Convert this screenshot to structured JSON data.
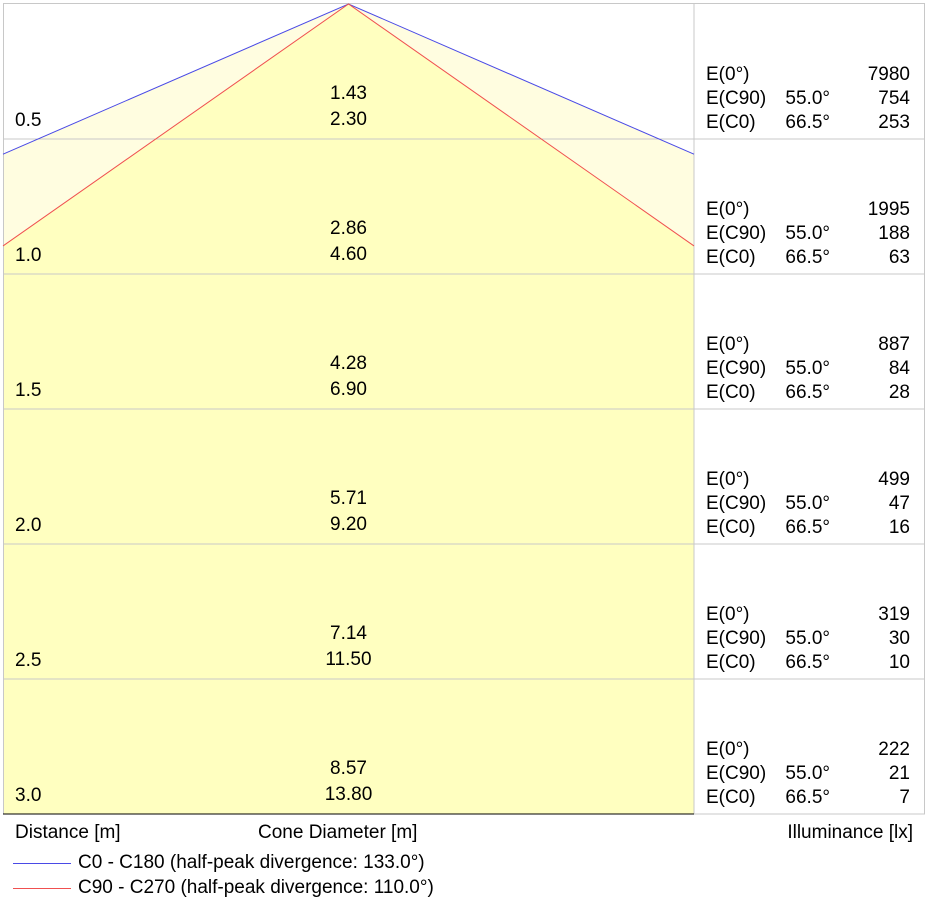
{
  "chart_data": {
    "type": "cone-diagram",
    "rows": [
      {
        "distance": "0.5",
        "d_c0": "2.30",
        "d_c90": "1.43",
        "e0": "7980",
        "ec90": "754",
        "ec0": "253"
      },
      {
        "distance": "1.0",
        "d_c0": "4.60",
        "d_c90": "2.86",
        "e0": "1995",
        "ec90": "188",
        "ec0": "63"
      },
      {
        "distance": "1.5",
        "d_c0": "6.90",
        "d_c90": "4.28",
        "e0": "887",
        "ec90": "84",
        "ec0": "28"
      },
      {
        "distance": "2.0",
        "d_c0": "9.20",
        "d_c90": "5.71",
        "e0": "499",
        "ec90": "47",
        "ec0": "16"
      },
      {
        "distance": "2.5",
        "d_c0": "11.50",
        "d_c90": "7.14",
        "e0": "319",
        "ec90": "30",
        "ec0": "10"
      },
      {
        "distance": "3.0",
        "d_c0": "13.80",
        "d_c90": "8.57",
        "e0": "222",
        "ec90": "21",
        "ec0": "7"
      }
    ],
    "e0_label": "E(0°)",
    "ec90_label": "E(C90)",
    "ec0_label": "E(C0)",
    "ec90_angle": "55.0°",
    "ec0_angle": "66.5°",
    "c0_half_angle_deg": 66.5,
    "c90_half_angle_deg": 55.0,
    "xlabel": "Distance [m]",
    "center_label": "Cone Diameter [m]",
    "right_label": "Illuminance [lx]",
    "series": [
      {
        "name": "C0 - C180 (half-peak divergence: 133.0°)",
        "color": "#4a4ae6"
      },
      {
        "name": "C90 - C270 (half-peak divergence: 110.0°)",
        "color": "#f05050"
      }
    ],
    "fill_color": "#ffffc0",
    "fill_light_color": "#fffde0",
    "grid_color": "#c8c8c8"
  }
}
